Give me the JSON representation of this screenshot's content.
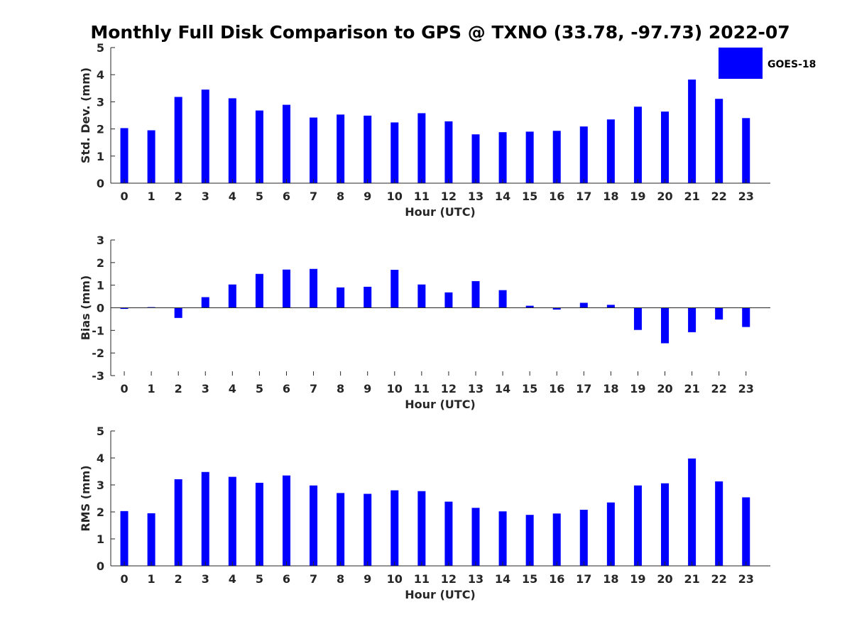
{
  "title": "Monthly Full Disk Comparison to GPS @ TXNO (33.78, -97.73) 2022-07",
  "legend": {
    "label": "GOES-18",
    "color": "#0000ff",
    "placement": "top-right"
  },
  "chart_data": [
    {
      "type": "bar",
      "ylabel": "Std. Dev. (mm)",
      "xlabel": "Hour (UTC)",
      "ylim": [
        0,
        5
      ],
      "yticks": [
        "0",
        "1",
        "2",
        "3",
        "4",
        "5"
      ],
      "categories": [
        "0",
        "1",
        "2",
        "3",
        "4",
        "5",
        "6",
        "7",
        "8",
        "9",
        "10",
        "11",
        "12",
        "13",
        "14",
        "15",
        "16",
        "17",
        "18",
        "19",
        "20",
        "21",
        "22",
        "23"
      ],
      "series": [
        {
          "name": "GOES-18",
          "values": [
            2.03,
            1.95,
            3.18,
            3.45,
            3.13,
            2.68,
            2.89,
            2.42,
            2.53,
            2.49,
            2.24,
            2.58,
            2.28,
            1.8,
            1.88,
            1.9,
            1.93,
            2.09,
            2.35,
            2.82,
            2.64,
            3.82,
            3.11,
            2.4
          ]
        }
      ]
    },
    {
      "type": "bar",
      "ylabel": "Bias (mm)",
      "xlabel": "Hour (UTC)",
      "ylim": [
        -3,
        3
      ],
      "yticks": [
        "-3",
        "-2",
        "-1",
        "0",
        "1",
        "2",
        "3"
      ],
      "categories": [
        "0",
        "1",
        "2",
        "3",
        "4",
        "5",
        "6",
        "7",
        "8",
        "9",
        "10",
        "11",
        "12",
        "13",
        "14",
        "15",
        "16",
        "17",
        "18",
        "19",
        "20",
        "21",
        "22",
        "23"
      ],
      "series": [
        {
          "name": "GOES-18",
          "values": [
            -0.05,
            0.03,
            -0.45,
            0.47,
            1.03,
            1.5,
            1.69,
            1.72,
            0.9,
            0.93,
            1.68,
            1.03,
            0.68,
            1.18,
            0.78,
            0.09,
            -0.08,
            0.22,
            0.13,
            -0.98,
            -1.57,
            -1.08,
            -0.52,
            -0.85
          ]
        }
      ]
    },
    {
      "type": "bar",
      "ylabel": "RMS (mm)",
      "xlabel": "Hour (UTC)",
      "ylim": [
        0,
        5
      ],
      "yticks": [
        "0",
        "1",
        "2",
        "3",
        "4",
        "5"
      ],
      "categories": [
        "0",
        "1",
        "2",
        "3",
        "4",
        "5",
        "6",
        "7",
        "8",
        "9",
        "10",
        "11",
        "12",
        "13",
        "14",
        "15",
        "16",
        "17",
        "18",
        "19",
        "20",
        "21",
        "22",
        "23"
      ],
      "series": [
        {
          "name": "GOES-18",
          "values": [
            2.03,
            1.95,
            3.21,
            3.48,
            3.3,
            3.08,
            3.35,
            2.98,
            2.7,
            2.67,
            2.8,
            2.77,
            2.38,
            2.15,
            2.02,
            1.89,
            1.94,
            2.08,
            2.35,
            2.98,
            3.06,
            3.98,
            3.13,
            2.54
          ]
        }
      ]
    }
  ]
}
